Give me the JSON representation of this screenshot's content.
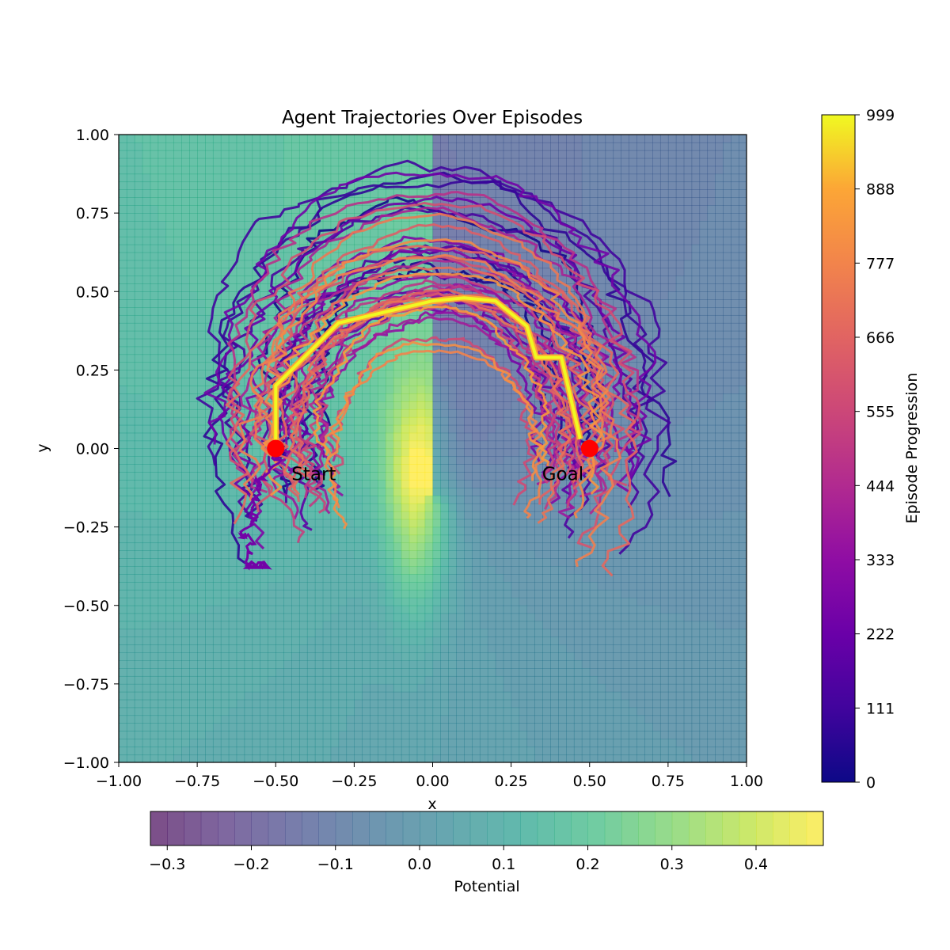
{
  "chart_data": {
    "type": "line",
    "title": "Agent Trajectories Over Episodes",
    "xlabel": "x",
    "ylabel": "y",
    "xlim": [
      -1.0,
      1.0
    ],
    "ylim": [
      -1.0,
      1.0
    ],
    "x_ticks": [
      "−1.00",
      "−0.75",
      "−0.50",
      "−0.25",
      "0.00",
      "0.25",
      "0.50",
      "0.75",
      "1.00"
    ],
    "y_ticks": [
      "−1.00",
      "−0.75",
      "−0.50",
      "−0.25",
      "0.00",
      "0.25",
      "0.50",
      "0.75",
      "1.00"
    ],
    "background": {
      "type": "contourf",
      "colormap": "viridis",
      "alpha": 0.7,
      "colorbar_label": "Potential",
      "range": [
        -0.32,
        0.48
      ],
      "ticks": [
        "−0.3",
        "−0.2",
        "−0.1",
        "0.0",
        "0.1",
        "0.2",
        "0.3",
        "0.4"
      ],
      "tick_values": [
        -0.3,
        -0.2,
        -0.1,
        0.0,
        0.1,
        0.2,
        0.3,
        0.4
      ],
      "peak": [
        -0.05,
        -0.15
      ],
      "trough": [
        0.05,
        -0.9
      ]
    },
    "trajectories": {
      "colormap": "plasma",
      "colorbar_label": "Episode Progression",
      "range": [
        0,
        999
      ],
      "ticks": [
        "0",
        "111",
        "222",
        "333",
        "444",
        "555",
        "666",
        "777",
        "888",
        "999"
      ],
      "tick_values": [
        0,
        111,
        222,
        333,
        444,
        555,
        666,
        777,
        888,
        999
      ]
    },
    "final_path": {
      "episode": 999,
      "x": [
        -0.5,
        -0.5,
        -0.3,
        0.0,
        0.1,
        0.2,
        0.3,
        0.33,
        0.41,
        0.47
      ],
      "y": [
        0.0,
        0.2,
        0.4,
        0.47,
        0.48,
        0.47,
        0.39,
        0.29,
        0.29,
        0.03
      ]
    },
    "markers": [
      {
        "label": "Start",
        "x": -0.5,
        "y": 0.0,
        "color": "#ff0000"
      },
      {
        "label": "Goal",
        "x": 0.5,
        "y": 0.0,
        "color": "#ff0000"
      }
    ]
  }
}
